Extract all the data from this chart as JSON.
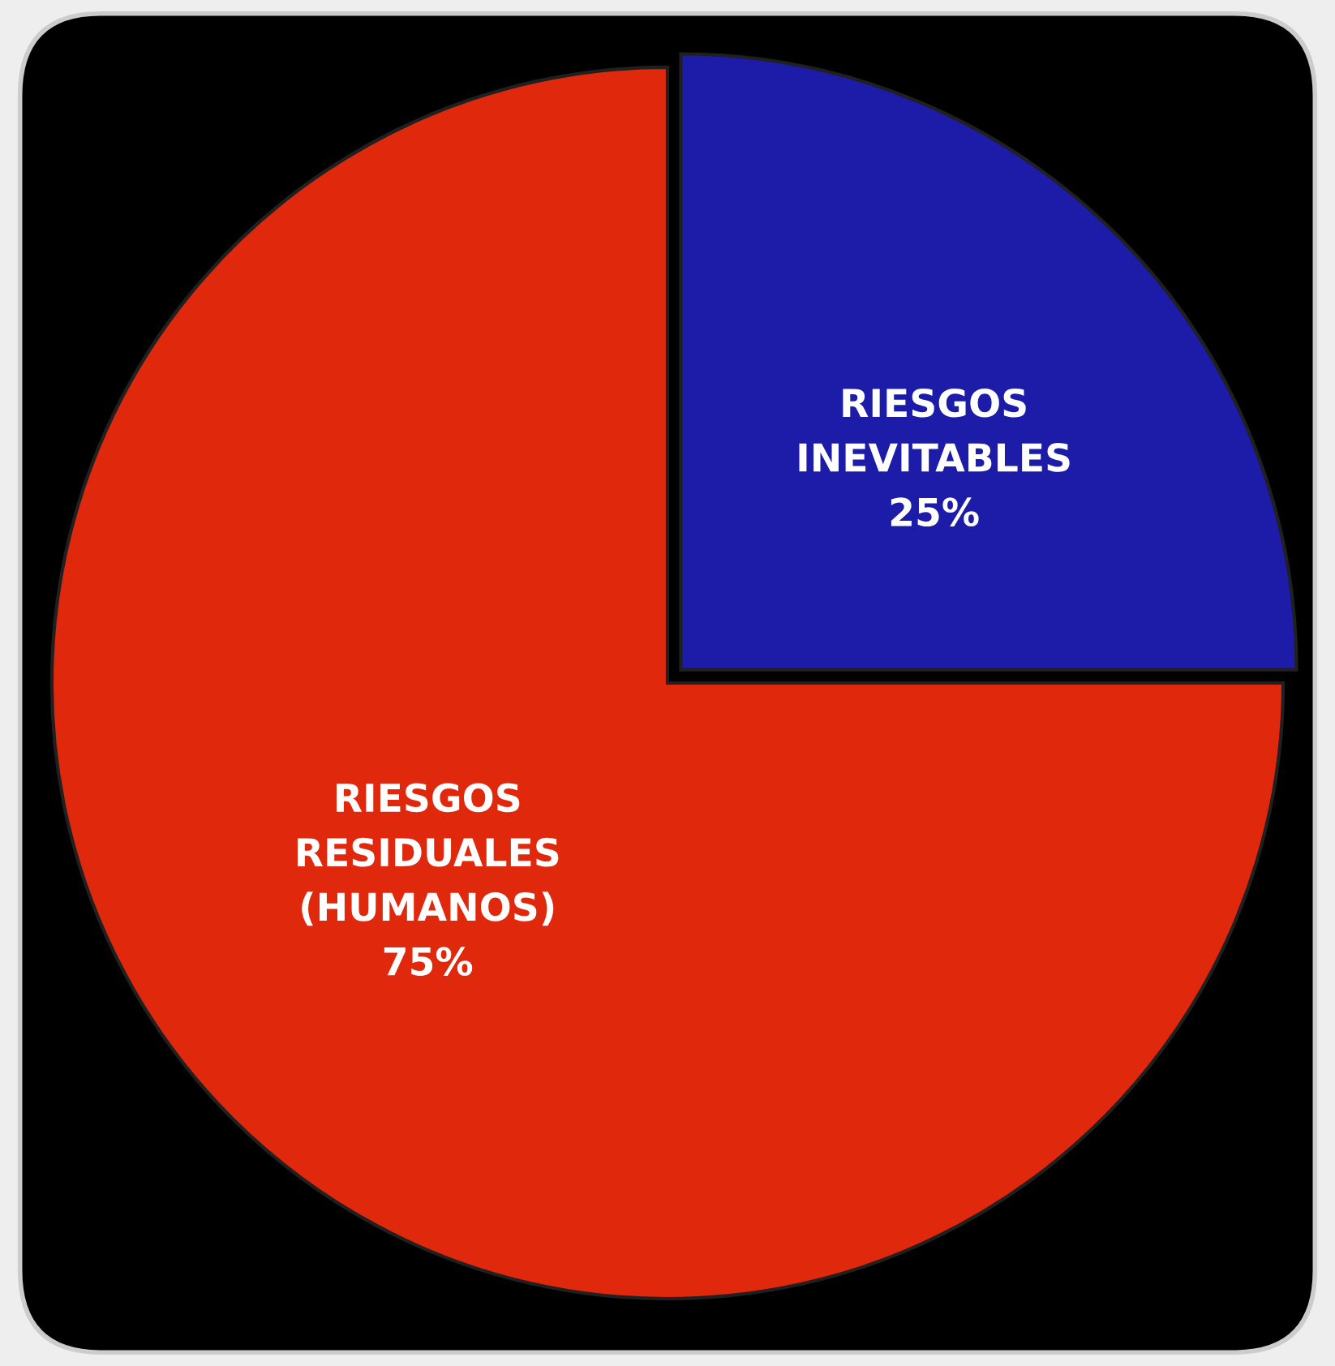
{
  "chart_data": {
    "type": "pie",
    "categories": [
      "RIESGOS\nINEVITABLES",
      "RIESGOS\nRESIDUALES\n(HUMANOS)"
    ],
    "values": [
      25,
      75
    ],
    "colors": [
      "#1c1ca8",
      "#e0280c"
    ],
    "value_labels": [
      "25%",
      "75%"
    ],
    "legend": false
  }
}
